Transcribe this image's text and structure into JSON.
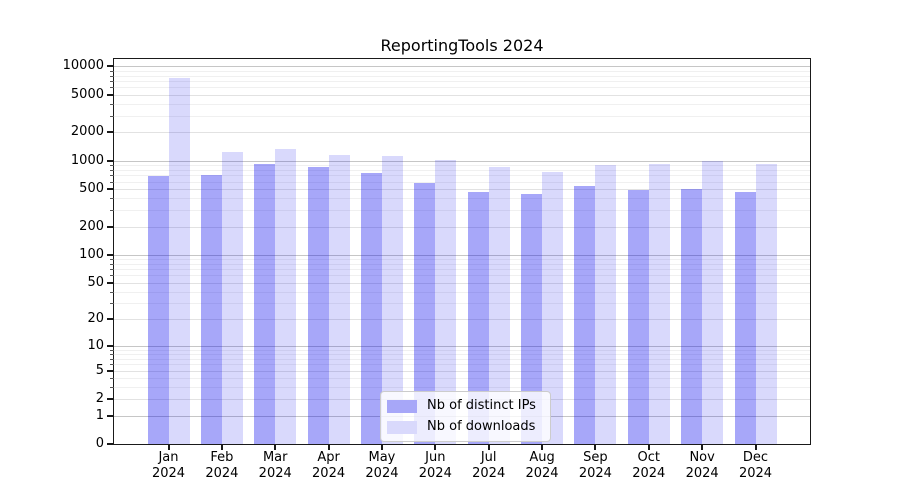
{
  "title": "ReportingTools 2024",
  "legend": {
    "items": [
      {
        "label": "Nb of distinct IPs",
        "color": "#a7a7f8"
      },
      {
        "label": "Nb of downloads",
        "color": "#d9d9fc"
      }
    ]
  },
  "chart_data": {
    "type": "bar",
    "title": "ReportingTools 2024",
    "categories": [
      "Jan",
      "Feb",
      "Mar",
      "Apr",
      "May",
      "Jun",
      "Jul",
      "Aug",
      "Sep",
      "Oct",
      "Nov",
      "Dec"
    ],
    "year": "2024",
    "series": [
      {
        "name": "Nb of distinct IPs",
        "values": [
          695,
          715,
          930,
          855,
          740,
          580,
          465,
          440,
          535,
          485,
          500,
          465
        ]
      },
      {
        "name": "Nb of downloads",
        "values": [
          7600,
          1240,
          1325,
          1145,
          1125,
          1020,
          855,
          760,
          905,
          925,
          1000,
          925
        ]
      }
    ],
    "yscale": "log1p",
    "ylim": [
      0,
      12000
    ],
    "y_ticks": [
      0,
      1,
      2,
      5,
      10,
      20,
      50,
      100,
      200,
      500,
      1000,
      2000,
      5000,
      10000
    ],
    "grid": "both",
    "legend_position": "lower center",
    "bar_colors": {
      "distinct_ips": "rgba(0,0,238,0.345)",
      "downloads": "rgba(0,0,238,0.15)"
    }
  }
}
